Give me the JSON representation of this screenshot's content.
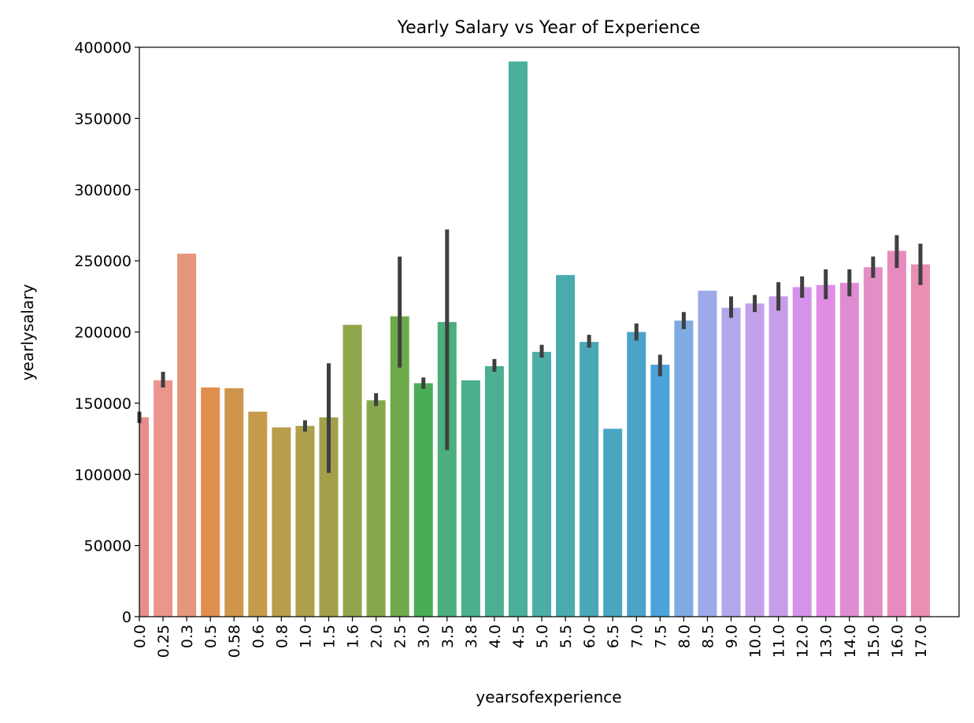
{
  "chart_data": {
    "type": "bar",
    "title": "Yearly Salary vs Year of Experience",
    "xlabel": "yearsofexperience",
    "ylabel": "yearlysalary",
    "ylim": [
      0,
      400000
    ],
    "yticks": [
      0,
      50000,
      100000,
      150000,
      200000,
      250000,
      300000,
      350000,
      400000
    ],
    "categories": [
      "0.0",
      "0.25",
      "0.3",
      "0.5",
      "0.58",
      "0.6",
      "0.8",
      "1.0",
      "1.5",
      "1.6",
      "2.0",
      "2.5",
      "3.0",
      "3.5",
      "3.8",
      "4.0",
      "4.5",
      "5.0",
      "5.5",
      "6.0",
      "6.5",
      "7.0",
      "7.5",
      "8.0",
      "8.5",
      "9.0",
      "10.0",
      "11.0",
      "12.0",
      "13.0",
      "14.0",
      "15.0",
      "16.0",
      "17.0"
    ],
    "values": [
      140000,
      166000,
      255000,
      161000,
      160500,
      144000,
      133000,
      134000,
      140000,
      205000,
      152000,
      211000,
      164000,
      207000,
      166000,
      176000,
      390000,
      186000,
      240000,
      193000,
      132000,
      200000,
      177000,
      208000,
      229000,
      217000,
      220000,
      225000,
      231500,
      233000,
      234500,
      245500,
      257000,
      247500
    ],
    "error_bars": [
      [
        136000,
        144000
      ],
      [
        161000,
        172000
      ],
      null,
      null,
      null,
      null,
      null,
      [
        130000,
        138000
      ],
      [
        101000,
        178000
      ],
      null,
      [
        148000,
        157000
      ],
      [
        175000,
        253000
      ],
      [
        160000,
        168000
      ],
      [
        117000,
        272000
      ],
      null,
      [
        172000,
        181000
      ],
      null,
      [
        182000,
        191000
      ],
      null,
      [
        189000,
        198000
      ],
      null,
      [
        194000,
        206000
      ],
      [
        169000,
        184000
      ],
      [
        202000,
        214000
      ],
      null,
      [
        210000,
        225000
      ],
      [
        214000,
        226000
      ],
      [
        215000,
        235000
      ],
      [
        224000,
        239000
      ],
      [
        223000,
        244000
      ],
      [
        225000,
        244000
      ],
      [
        238000,
        253000
      ],
      [
        245000,
        268000
      ],
      [
        233000,
        262000
      ]
    ],
    "colors": [
      "#ea8c8c",
      "#ea968c",
      "#e6967a",
      "#e08f4c",
      "#cf954c",
      "#c59b4b",
      "#b99d4b",
      "#ad9f4b",
      "#a3a04b",
      "#91a54b",
      "#84a84b",
      "#6eaa4b",
      "#4aad55",
      "#4aaf7c",
      "#4aaf8c",
      "#4aaf93",
      "#4aaf9c",
      "#4aaea6",
      "#4aabae",
      "#4aa8b6",
      "#4aa6c0",
      "#4aa3c9",
      "#4aa3da",
      "#7fabe3",
      "#9eaae8",
      "#b3a6ea",
      "#c3a1ea",
      "#c59de8",
      "#d493e8",
      "#e08ce6",
      "#e08cd2",
      "#e48ec6",
      "#e78bbe",
      "#e88fb2"
    ],
    "grid": false,
    "legend": "none"
  }
}
